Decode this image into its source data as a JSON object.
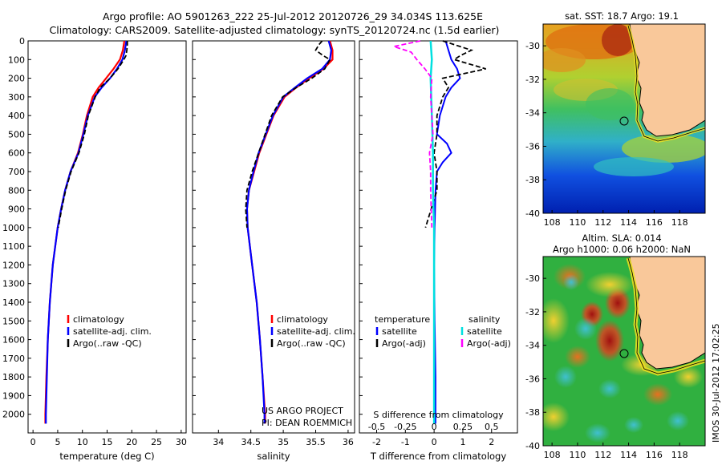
{
  "header": {
    "line1": "Argo profile: AO 5901263_222 25-Jul-2012 20120726_29 34.034S 113.625E",
    "line2": "Climatology: CARS2009. Satellite-adjusted climatology: synTS_20120724.nc (1.5d earlier)"
  },
  "side_text": "IMOS 30-Jul-2012 17:02:25",
  "colors": {
    "climatology": "#ff0000",
    "satellite": "#0000ff",
    "argo": "#000000",
    "satellite_salinity": "#00e0e0",
    "argo_salinity": "#ff00ff",
    "land": "#f9c89a"
  },
  "chart_data": [
    {
      "type": "line",
      "id": "temperature",
      "xlabel": "temperature (deg C)",
      "ylim": [
        2100,
        0
      ],
      "xlim": [
        -1,
        31
      ],
      "xticks": [
        0,
        5,
        10,
        15,
        20,
        25,
        30
      ],
      "yticks": [
        0,
        100,
        200,
        300,
        400,
        500,
        600,
        700,
        800,
        900,
        1000,
        1100,
        1200,
        1300,
        1400,
        1500,
        1600,
        1700,
        1800,
        1900,
        2000
      ],
      "legend": [
        "climatology",
        "satellite-adj. clim.",
        "Argo(..raw -QC)"
      ],
      "series": [
        {
          "name": "climatology",
          "depth": [
            0,
            50,
            100,
            150,
            200,
            250,
            300,
            400,
            500,
            600,
            700,
            800,
            900,
            1000,
            1200,
            1400,
            1600,
            1800,
            2000,
            2050
          ],
          "values": [
            18.5,
            18.2,
            17.6,
            16.3,
            14.8,
            13.3,
            12.1,
            10.9,
            10.1,
            9.1,
            7.6,
            6.5,
            5.7,
            5.0,
            4.0,
            3.4,
            3.0,
            2.7,
            2.5,
            2.5
          ]
        },
        {
          "name": "satellite-adj. clim.",
          "depth": [
            0,
            50,
            100,
            150,
            200,
            250,
            300,
            400,
            500,
            600,
            700,
            800,
            900,
            1000,
            1200,
            1400,
            1600,
            1800,
            2000,
            2050
          ],
          "values": [
            18.9,
            18.6,
            18.1,
            17.0,
            15.6,
            13.9,
            12.5,
            11.1,
            10.2,
            9.2,
            7.6,
            6.5,
            5.7,
            5.0,
            4.0,
            3.4,
            3.0,
            2.8,
            2.6,
            2.6
          ]
        },
        {
          "name": "Argo(..raw -QC)",
          "depth": [
            0,
            20,
            50,
            80,
            100,
            150,
            200,
            250,
            300,
            400,
            500,
            600,
            700,
            800,
            900,
            1000
          ],
          "values": [
            19.1,
            19.1,
            19.0,
            18.8,
            18.4,
            17.2,
            15.6,
            13.6,
            12.6,
            11.2,
            10.4,
            9.3,
            7.7,
            6.6,
            5.8,
            5.1
          ]
        }
      ]
    },
    {
      "type": "line",
      "id": "salinity",
      "xlabel": "salinity",
      "ylim": [
        2100,
        0
      ],
      "xlim": [
        33.6,
        36.1
      ],
      "xticks": [
        34,
        34.5,
        35,
        35.5,
        36
      ],
      "legend": [
        "climatology",
        "satellite-adj. clim.",
        "Argo(..raw -QC)"
      ],
      "annotation": [
        "US ARGO PROJECT",
        "PI: DEAN ROEMMICH"
      ],
      "series": [
        {
          "name": "climatology",
          "depth": [
            0,
            50,
            100,
            150,
            200,
            250,
            300,
            400,
            500,
            600,
            700,
            800,
            900,
            1000,
            1200,
            1400,
            1600,
            1800,
            2000,
            2050
          ],
          "values": [
            35.72,
            35.76,
            35.76,
            35.62,
            35.4,
            35.2,
            35.02,
            34.85,
            34.74,
            34.63,
            34.55,
            34.47,
            34.44,
            34.45,
            34.52,
            34.59,
            34.64,
            34.68,
            34.72,
            34.72
          ]
        },
        {
          "name": "satellite-adj. clim.",
          "depth": [
            0,
            50,
            100,
            150,
            200,
            250,
            300,
            400,
            500,
            600,
            700,
            800,
            900,
            1000,
            1200,
            1400,
            1600,
            1800,
            2000,
            2050
          ],
          "values": [
            35.7,
            35.74,
            35.72,
            35.6,
            35.37,
            35.18,
            35.0,
            34.84,
            34.73,
            34.62,
            34.54,
            34.47,
            34.44,
            34.45,
            34.52,
            34.59,
            34.64,
            34.68,
            34.71,
            34.71
          ]
        },
        {
          "name": "Argo(..raw -QC)",
          "depth": [
            0,
            20,
            50,
            80,
            100,
            150,
            200,
            250,
            300,
            400,
            500,
            600,
            700,
            800,
            900,
            1000
          ],
          "values": [
            35.6,
            35.55,
            35.5,
            35.62,
            35.72,
            35.64,
            35.44,
            35.2,
            34.99,
            34.82,
            34.72,
            34.62,
            34.52,
            34.44,
            34.42,
            34.44
          ]
        }
      ]
    },
    {
      "type": "line",
      "id": "difference",
      "xlabel": "T difference from climatology",
      "xlabel_top": "S difference from climatology",
      "ylim": [
        2100,
        0
      ],
      "xlim": [
        -2.6,
        2.9
      ],
      "xticks": [
        -2,
        -1,
        0,
        1,
        2
      ],
      "xticks_top": [
        -0.5,
        -0.25,
        0,
        0.25,
        0.5
      ],
      "xtick_labels_top": [
        "-0.5",
        "-0.25",
        "0",
        "0.25",
        "0.5"
      ],
      "legend_titles": [
        "temperature",
        "salinity"
      ],
      "legend": [
        "satellite",
        "Argo(-adj)",
        "satellite",
        "Argo(-adj)"
      ],
      "series": [
        {
          "name": "satellite",
          "group": "temperature",
          "depth": [
            0,
            50,
            100,
            150,
            200,
            250,
            300,
            350,
            400,
            500,
            550,
            600,
            650,
            700,
            800,
            1000,
            1200,
            1500,
            1800,
            2050
          ],
          "values": [
            0.4,
            0.5,
            0.6,
            0.8,
            0.9,
            0.6,
            0.4,
            0.3,
            0.2,
            0.1,
            0.45,
            0.6,
            0.3,
            0.1,
            0.05,
            0.02,
            0.0,
            0.02,
            0.05,
            0.05
          ]
        },
        {
          "name": "Argo(-adj)",
          "group": "temperature",
          "depth": [
            0,
            50,
            80,
            100,
            150,
            200,
            250,
            300,
            400,
            500,
            600,
            700,
            800,
            900,
            1000
          ],
          "values": [
            0.3,
            1.3,
            0.9,
            0.7,
            1.8,
            0.3,
            0.5,
            0.3,
            0.1,
            0.1,
            0.0,
            0.1,
            0.1,
            -0.1,
            -0.3
          ]
        },
        {
          "name": "satellite",
          "group": "salinity",
          "depth": [
            0,
            100,
            200,
            400,
            600,
            800,
            1000,
            1200,
            1500,
            1800,
            2050
          ],
          "values": [
            -0.03,
            -0.02,
            -0.03,
            -0.02,
            -0.01,
            -0.01,
            0.0,
            0.0,
            0.0,
            0.0,
            0.0
          ]
        },
        {
          "name": "Argo(-adj)",
          "group": "salinity",
          "depth": [
            0,
            30,
            60,
            100,
            150,
            200,
            300,
            400,
            500,
            600,
            700,
            800,
            1000
          ],
          "values": [
            -0.12,
            -0.35,
            -0.2,
            -0.15,
            -0.08,
            -0.02,
            -0.03,
            -0.02,
            -0.01,
            -0.04,
            -0.03,
            -0.03,
            -0.02
          ]
        }
      ]
    },
    {
      "type": "heatmap",
      "id": "sst_map",
      "title": "sat. SST: 18.7 Argo: 19.1",
      "xlim": [
        107.3,
        120
      ],
      "ylim": [
        -40,
        -28.7
      ],
      "xticks": [
        108,
        110,
        112,
        114,
        116,
        118
      ],
      "yticks": [
        -30,
        -32,
        -34,
        -36,
        -38,
        -40
      ],
      "marker": {
        "lon": 113.625,
        "lat": -34.034
      }
    },
    {
      "type": "heatmap",
      "id": "sla_map",
      "title": [
        "Altim. SLA: 0.014",
        "Argo h1000: 0.06 h2000: NaN"
      ],
      "xlim": [
        107.3,
        120
      ],
      "ylim": [
        -40,
        -28.7
      ],
      "xticks": [
        108,
        110,
        112,
        114,
        116,
        118
      ],
      "yticks": [
        -30,
        -32,
        -34,
        -36,
        -38,
        -40
      ],
      "marker": {
        "lon": 113.625,
        "lat": -34.034
      }
    }
  ]
}
